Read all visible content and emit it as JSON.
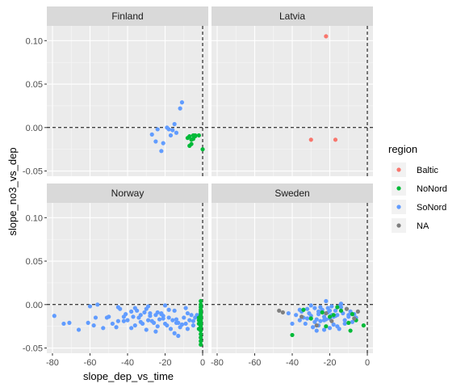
{
  "chart_data": {
    "type": "scatter",
    "facet": "country",
    "xlabel": "slope_dep_vs_time",
    "ylabel": "slope_no3_vs_dep",
    "xlim": [
      -83,
      3
    ],
    "ylim": [
      -0.056,
      0.117
    ],
    "x_ticks": [
      -80,
      -60,
      -40,
      -20,
      0
    ],
    "x_tick_labels": [
      "-80",
      "-60",
      "-40",
      "-20",
      "0"
    ],
    "y_ticks": [
      -0.05,
      0,
      0.05,
      0.1
    ],
    "y_tick_labels": [
      "-0.05",
      "0.00",
      "0.05",
      "0.10"
    ],
    "reference_lines": {
      "x": 0,
      "y": 0,
      "style": "dashed"
    },
    "grid": true,
    "legend": {
      "title": "region",
      "position": "right",
      "entries": [
        {
          "name": "Baltic",
          "color": "#F8766D"
        },
        {
          "name": "NoNord",
          "color": "#00BA38"
        },
        {
          "name": "SoNord",
          "color": "#619CFF"
        },
        {
          "name": "NA",
          "color": "#7F7F7F"
        }
      ]
    },
    "panels": [
      {
        "name": "Finland",
        "series": [
          {
            "name": "SoNord",
            "x": [
              -11,
              -12,
              -16,
              -17,
              -15,
              -18,
              -21,
              -22,
              -25,
              -27,
              -24,
              -19,
              -14
            ],
            "y": [
              0.029,
              0.022,
              -0.003,
              -0.009,
              0.004,
              -0.002,
              -0.018,
              -0.027,
              -0.016,
              -0.008,
              -0.002,
              0.0,
              -0.006
            ]
          },
          {
            "name": "NoNord",
            "x": [
              -2,
              -4,
              -5,
              -6,
              -6,
              -7,
              -8,
              -5,
              -4
            ],
            "y": [
              -0.009,
              -0.009,
              -0.013,
              -0.019,
              -0.014,
              -0.01,
              -0.012,
              -0.009,
              -0.01
            ]
          },
          {
            "name": "NoNord-2",
            "x": [
              0,
              -7
            ],
            "y": [
              -0.025,
              -0.021
            ]
          }
        ]
      },
      {
        "name": "Latvia",
        "series": [
          {
            "name": "Baltic",
            "x": [
              -22,
              -30,
              -17
            ],
            "y": [
              0.105,
              -0.014,
              -0.014
            ]
          }
        ]
      },
      {
        "name": "Norway",
        "series": [
          {
            "name": "SoNord",
            "x": [
              -79,
              -74,
              -71,
              -66,
              -61,
              -58,
              -56,
              -53,
              -51,
              -50,
              -48,
              -45,
              -44,
              -42,
              -41,
              -40,
              -38,
              -37,
              -36,
              -35,
              -34,
              -33,
              -32,
              -31,
              -30,
              -29,
              -28,
              -27,
              -26,
              -25,
              -24,
              -23,
              -22,
              -21,
              -20,
              -19,
              -18,
              -17,
              -16,
              -15,
              -14,
              -13,
              -12,
              -11,
              -10,
              -9,
              -8,
              -7,
              -6,
              -5,
              -4,
              -3,
              -30,
              -36,
              -42,
              -22,
              -18,
              -14,
              -25,
              -33,
              -46,
              -57,
              -60,
              -45,
              -38,
              -28,
              -20,
              -13,
              -9,
              -8,
              -5,
              -21,
              -15,
              -24,
              -29
            ],
            "y": [
              -0.013,
              -0.022,
              -0.021,
              -0.029,
              -0.021,
              -0.024,
              0.0,
              -0.027,
              -0.015,
              -0.014,
              -0.022,
              -0.019,
              -0.005,
              -0.014,
              -0.011,
              -0.018,
              -0.008,
              -0.014,
              -0.024,
              -0.007,
              -0.015,
              -0.012,
              -0.022,
              -0.009,
              -0.005,
              -0.018,
              -0.013,
              -0.019,
              -0.021,
              -0.012,
              -0.009,
              -0.017,
              -0.011,
              -0.016,
              -0.022,
              -0.024,
              -0.015,
              -0.028,
              -0.018,
              -0.033,
              -0.021,
              -0.036,
              -0.026,
              -0.023,
              -0.015,
              -0.022,
              -0.01,
              -0.018,
              -0.012,
              -0.019,
              -0.015,
              -0.012,
              -0.029,
              -0.004,
              -0.019,
              -0.01,
              -0.006,
              -0.017,
              -0.031,
              -0.02,
              -0.026,
              -0.015,
              -0.002,
              -0.003,
              -0.027,
              -0.01,
              -0.001,
              -0.021,
              -0.004,
              -0.028,
              -0.024,
              -0.013,
              -0.007,
              -0.025,
              -0.002
            ]
          },
          {
            "name": "NoNord",
            "x": [
              -1,
              -1,
              -1,
              -1,
              -1,
              -1,
              -1,
              -1,
              -1,
              -1,
              -1,
              -1,
              -1,
              -1,
              -1,
              -1,
              -1,
              -1,
              -1,
              -2,
              -2,
              -2,
              -2
            ],
            "y": [
              0.004,
              0.0,
              -0.003,
              -0.006,
              -0.008,
              -0.01,
              -0.012,
              -0.014,
              -0.016,
              -0.018,
              -0.02,
              -0.022,
              -0.024,
              -0.026,
              -0.03,
              -0.034,
              -0.038,
              -0.042,
              -0.046,
              -0.018,
              -0.022,
              -0.015,
              -0.028
            ]
          }
        ]
      },
      {
        "name": "Sweden",
        "series": [
          {
            "name": "SoNord",
            "x": [
              -40,
              -38,
              -36,
              -35,
              -34,
              -33,
              -32,
              -31,
              -30,
              -29,
              -28,
              -27,
              -26,
              -25,
              -24,
              -23,
              -22,
              -21,
              -20,
              -19,
              -18,
              -17,
              -16,
              -15,
              -14,
              -13,
              -12,
              -11,
              -10,
              -9,
              -8,
              -7,
              -6,
              -30,
              -26,
              -23,
              -20,
              -17,
              -14,
              -28,
              -25,
              -22,
              -19,
              -16,
              -24,
              -21,
              -18,
              -27,
              -32,
              -36,
              -42,
              -20,
              -15,
              -12,
              -10,
              -23,
              -26
            ],
            "y": [
              -0.022,
              -0.012,
              -0.018,
              -0.008,
              -0.015,
              -0.022,
              -0.005,
              -0.01,
              -0.013,
              -0.026,
              -0.004,
              -0.017,
              -0.011,
              -0.019,
              -0.006,
              -0.014,
              0.004,
              -0.009,
              -0.016,
              -0.002,
              -0.023,
              -0.007,
              -0.012,
              -0.028,
              -0.003,
              -0.01,
              -0.018,
              -0.005,
              -0.014,
              -0.008,
              -0.02,
              -0.011,
              -0.015,
              -0.001,
              -0.024,
              -0.029,
              -0.007,
              -0.013,
              0.001,
              -0.02,
              -0.003,
              -0.017,
              -0.012,
              -0.025,
              -0.009,
              -0.004,
              -0.014,
              -0.03,
              -0.016,
              -0.006,
              -0.01,
              -0.027,
              -0.002,
              -0.022,
              -0.012,
              -0.018,
              -0.008
            ]
          },
          {
            "name": "NoNord",
            "x": [
              -40,
              -34,
              -30,
              -22,
              -18,
              -14,
              -10,
              -9,
              -8,
              -6,
              -2,
              -24,
              -20,
              -16
            ],
            "y": [
              -0.035,
              -0.006,
              -0.016,
              -0.025,
              -0.012,
              -0.007,
              -0.021,
              -0.03,
              -0.011,
              -0.018,
              -0.024,
              -0.009,
              -0.014,
              -0.003
            ]
          },
          {
            "name": "NA",
            "x": [
              -47,
              -45,
              -35,
              -27,
              -22,
              -19,
              -11,
              -7,
              -5
            ],
            "y": [
              -0.007,
              -0.009,
              -0.014,
              -0.024,
              -0.01,
              -0.019,
              -0.005,
              -0.016,
              -0.008
            ]
          }
        ]
      }
    ]
  }
}
